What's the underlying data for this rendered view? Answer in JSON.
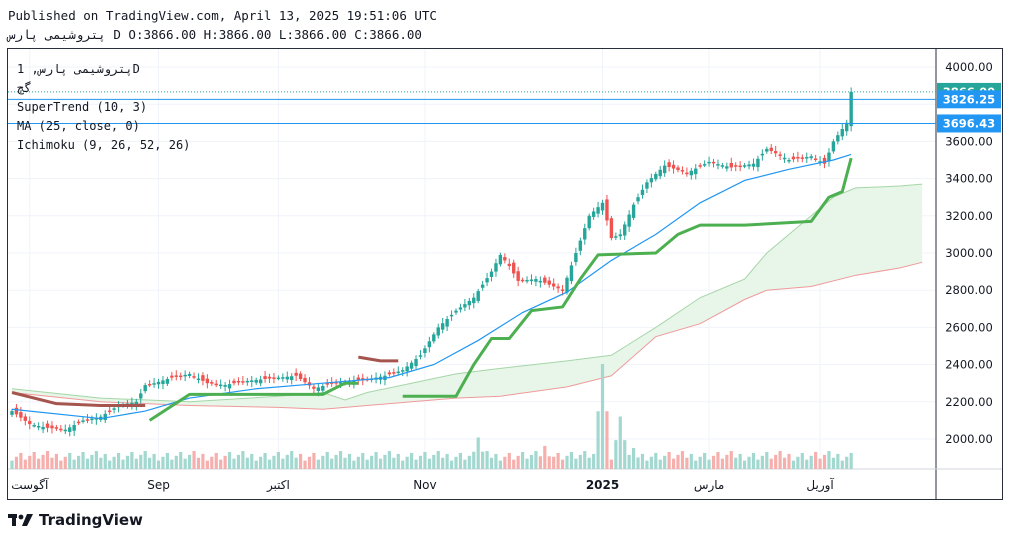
{
  "header": {
    "published": "Published on TradingView.com, April 13, 2025 19:51:06 UTC",
    "ohlc": "پتروشیمی پارس D O:3866.00 H:3866.00 L:3866.00 C:3866.00"
  },
  "legend": {
    "symbol": "پتروشیمی پارس, 1D",
    "exchange": "گچ",
    "supertrend": "SuperTrend (10, 3)",
    "ma": "MA (25, close, 0)",
    "ichimoku": "Ichimoku (9, 26, 52, 26)"
  },
  "brand": {
    "name": "TradingView"
  },
  "colors": {
    "up": "#26a69a",
    "down": "#ef5350",
    "supertrend_up": "#4caf50",
    "supertrend_down": "#a5554d",
    "ma": "#2196f3",
    "cloud_up": "#e8f5e9",
    "cloud_down": "#fbe3e2",
    "grid": "#f0f3fa"
  },
  "chart_data": {
    "type": "candlestick",
    "y_axis": {
      "min": 1800,
      "max": 4100,
      "ticks": [
        "2000.00",
        "2200.00",
        "2400.00",
        "2600.00",
        "2800.00",
        "3000.00",
        "3200.00",
        "3400.00",
        "3600.00",
        "3800.00",
        "4000.00"
      ]
    },
    "x_axis": {
      "labels": [
        "آگوست",
        "Sep",
        "اکتبر",
        "Nov",
        "2025",
        "مارس",
        "آوریل"
      ]
    },
    "price_labels": [
      {
        "value": 3866,
        "text": "3866.00",
        "color": "#26a69a"
      },
      {
        "value": 3826.25,
        "text": "3826.25",
        "color": "#2196f3"
      },
      {
        "value": 3696.43,
        "text": "3696.43",
        "color": "#2196f3"
      }
    ],
    "close_anchors": [
      [
        0,
        2150
      ],
      [
        4,
        2080
      ],
      [
        8,
        2060
      ],
      [
        12,
        2050
      ],
      [
        16,
        2100
      ],
      [
        20,
        2120
      ],
      [
        24,
        2180
      ],
      [
        28,
        2200
      ],
      [
        30,
        2290
      ],
      [
        32,
        2300
      ],
      [
        36,
        2330
      ],
      [
        40,
        2350
      ],
      [
        44,
        2300
      ],
      [
        48,
        2290
      ],
      [
        52,
        2310
      ],
      [
        56,
        2320
      ],
      [
        60,
        2330
      ],
      [
        64,
        2340
      ],
      [
        68,
        2270
      ],
      [
        72,
        2300
      ],
      [
        76,
        2310
      ],
      [
        80,
        2320
      ],
      [
        84,
        2340
      ],
      [
        88,
        2370
      ],
      [
        92,
        2450
      ],
      [
        96,
        2600
      ],
      [
        100,
        2690
      ],
      [
        104,
        2760
      ],
      [
        108,
        2900
      ],
      [
        110,
        2990
      ],
      [
        112,
        2930
      ],
      [
        114,
        2850
      ],
      [
        118,
        2860
      ],
      [
        122,
        2820
      ],
      [
        124,
        2800
      ],
      [
        127,
        3000
      ],
      [
        130,
        3200
      ],
      [
        133,
        3270
      ],
      [
        135,
        3080
      ],
      [
        137,
        3100
      ],
      [
        140,
        3260
      ],
      [
        143,
        3380
      ],
      [
        147,
        3470
      ],
      [
        152,
        3430
      ],
      [
        157,
        3490
      ],
      [
        162,
        3460
      ],
      [
        167,
        3480
      ],
      [
        170,
        3560
      ],
      [
        175,
        3500
      ],
      [
        180,
        3520
      ],
      [
        183,
        3480
      ],
      [
        185,
        3600
      ],
      [
        188,
        3700
      ],
      [
        189,
        3866
      ]
    ],
    "supertrend": [
      [
        0,
        2250,
        "down"
      ],
      [
        10,
        2190,
        "down"
      ],
      [
        20,
        2180,
        "down"
      ],
      [
        30,
        2180,
        "down"
      ],
      [
        31,
        2100,
        "up"
      ],
      [
        40,
        2240,
        "up"
      ],
      [
        55,
        2240,
        "up"
      ],
      [
        70,
        2240,
        "up"
      ],
      [
        75,
        2300,
        "up"
      ],
      [
        78,
        2300,
        "up"
      ],
      [
        78,
        2440,
        "down"
      ],
      [
        83,
        2420,
        "down"
      ],
      [
        87,
        2420,
        "down"
      ],
      [
        88,
        2230,
        "up"
      ],
      [
        100,
        2230,
        "up"
      ],
      [
        104,
        2400,
        "up"
      ],
      [
        108,
        2540,
        "up"
      ],
      [
        112,
        2540,
        "up"
      ],
      [
        117,
        2690,
        "up"
      ],
      [
        124,
        2710,
        "up"
      ],
      [
        128,
        2860,
        "up"
      ],
      [
        132,
        2990,
        "up"
      ],
      [
        145,
        3000,
        "up"
      ],
      [
        150,
        3100,
        "up"
      ],
      [
        155,
        3150,
        "up"
      ],
      [
        165,
        3150,
        "up"
      ],
      [
        180,
        3170,
        "up"
      ],
      [
        184,
        3300,
        "up"
      ],
      [
        187,
        3330,
        "up"
      ],
      [
        189,
        3510,
        "up"
      ]
    ],
    "ma": [
      [
        0,
        2160
      ],
      [
        20,
        2110
      ],
      [
        30,
        2150
      ],
      [
        40,
        2220
      ],
      [
        55,
        2270
      ],
      [
        70,
        2300
      ],
      [
        85,
        2330
      ],
      [
        95,
        2400
      ],
      [
        105,
        2530
      ],
      [
        115,
        2680
      ],
      [
        125,
        2790
      ],
      [
        135,
        2960
      ],
      [
        145,
        3100
      ],
      [
        155,
        3270
      ],
      [
        165,
        3390
      ],
      [
        175,
        3450
      ],
      [
        185,
        3500
      ],
      [
        189,
        3530
      ]
    ],
    "cloud_a": [
      [
        0,
        2270
      ],
      [
        20,
        2220
      ],
      [
        40,
        2200
      ],
      [
        60,
        2230
      ],
      [
        70,
        2250
      ],
      [
        75,
        2210
      ],
      [
        80,
        2250
      ],
      [
        90,
        2300
      ],
      [
        100,
        2350
      ],
      [
        110,
        2380
      ],
      [
        125,
        2420
      ],
      [
        135,
        2450
      ],
      [
        145,
        2600
      ],
      [
        155,
        2760
      ],
      [
        165,
        2860
      ],
      [
        170,
        3000
      ],
      [
        175,
        3100
      ],
      [
        180,
        3200
      ],
      [
        185,
        3300
      ],
      [
        190,
        3350
      ],
      [
        200,
        3360
      ],
      [
        205,
        3370
      ]
    ],
    "cloud_b": [
      [
        0,
        2250
      ],
      [
        20,
        2200
      ],
      [
        40,
        2180
      ],
      [
        60,
        2170
      ],
      [
        70,
        2160
      ],
      [
        75,
        2170
      ],
      [
        80,
        2180
      ],
      [
        90,
        2200
      ],
      [
        100,
        2220
      ],
      [
        110,
        2230
      ],
      [
        125,
        2280
      ],
      [
        135,
        2340
      ],
      [
        145,
        2550
      ],
      [
        155,
        2620
      ],
      [
        165,
        2750
      ],
      [
        170,
        2800
      ],
      [
        180,
        2820
      ],
      [
        190,
        2880
      ],
      [
        200,
        2920
      ],
      [
        205,
        2950
      ]
    ],
    "volume_spikes": [
      [
        133,
        1.0
      ],
      [
        137,
        0.5
      ],
      [
        105,
        0.3
      ],
      [
        120,
        0.22
      ],
      [
        140,
        0.2
      ],
      [
        60,
        0.15
      ]
    ]
  }
}
